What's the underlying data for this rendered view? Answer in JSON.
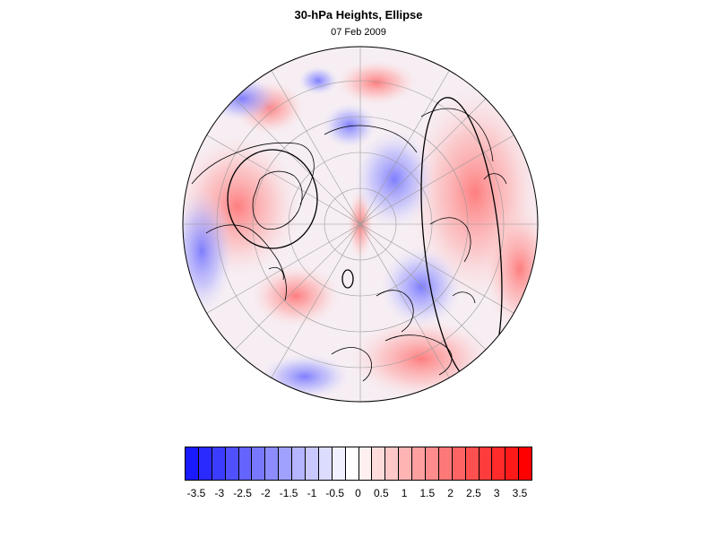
{
  "title": "30-hPa Heights, Ellipse",
  "subtitle": "07 Feb 2009",
  "colors": {
    "negative_extreme": "#1010ff",
    "neutral": "#ffffff",
    "positive_extreme": "#ff1010",
    "coastline": "#000000",
    "gridline": "#9a9a9a",
    "ellipse": "#000000"
  },
  "map": {
    "projection": "polar-stereographic-north",
    "field": "30-hPa height anomaly",
    "ellipse_contours": 3
  },
  "colorbar": {
    "levels": [
      "-3.5",
      "-3",
      "-2.5",
      "-2",
      "-1.5",
      "-1",
      "-0.5",
      "0",
      "0.5",
      "1",
      "1.5",
      "2",
      "2.5",
      "3",
      "3.5"
    ],
    "swatches": [
      "#1a1aff",
      "#2a2aff",
      "#3c3cff",
      "#5050ff",
      "#6464ff",
      "#7878ff",
      "#8c8cff",
      "#a0a0ff",
      "#b4b4ff",
      "#c8c8ff",
      "#dcdcff",
      "#f0f0ff",
      "#ffffff",
      "#fff0f0",
      "#ffdcdc",
      "#ffc8c8",
      "#ffb4b4",
      "#ffa0a0",
      "#ff8c8c",
      "#ff7878",
      "#ff6464",
      "#ff5050",
      "#ff3c3c",
      "#ff2a2a",
      "#ff1a1a",
      "#ff0000"
    ]
  }
}
